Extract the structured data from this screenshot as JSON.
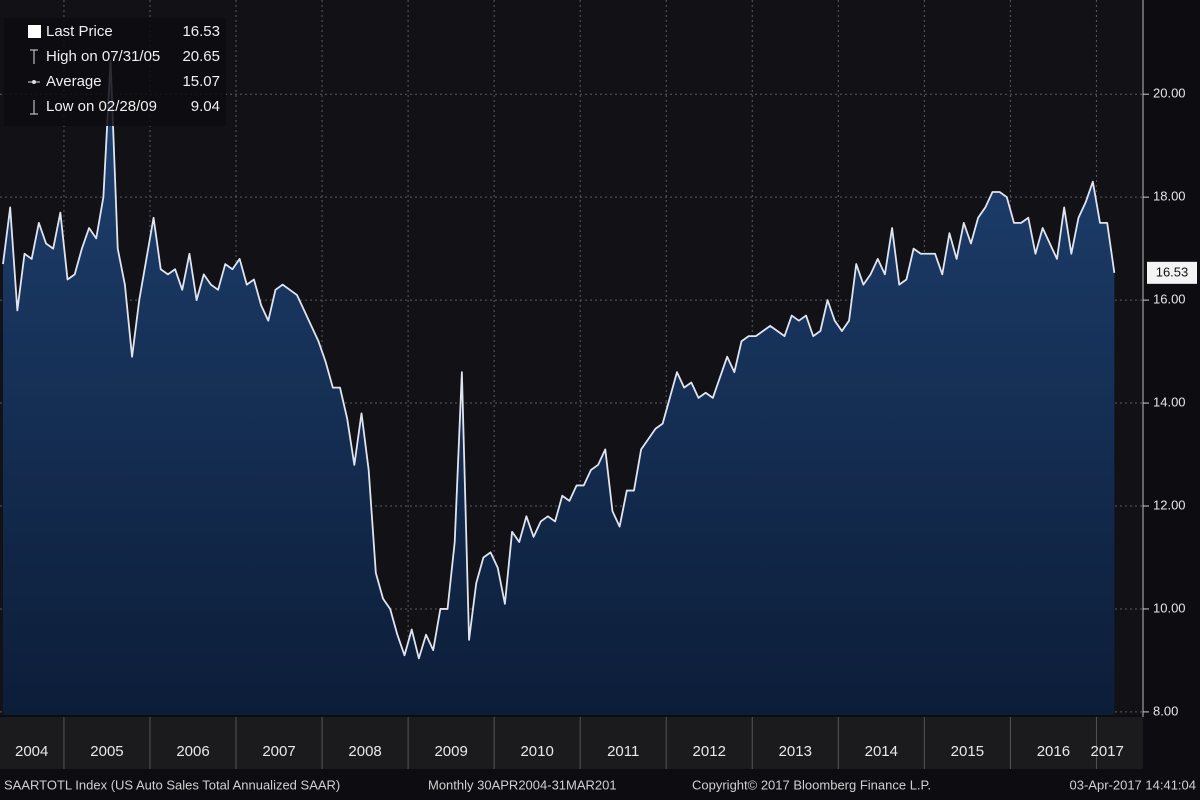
{
  "chart_data": {
    "type": "area",
    "color": "#dfe4ee",
    "fill": "#173562",
    "categories": [
      "2004",
      null,
      null,
      null,
      null,
      null,
      null,
      null,
      null,
      "2005",
      null,
      null,
      null,
      null,
      null,
      null,
      null,
      null,
      null,
      null,
      null,
      "2006",
      null,
      null,
      null,
      null,
      null,
      null,
      null,
      null,
      null,
      null,
      null,
      "2007",
      null,
      null,
      null,
      null,
      null,
      null,
      null,
      null,
      null,
      null,
      null,
      "2008",
      null,
      null,
      null,
      null,
      null,
      null,
      null,
      null,
      null,
      null,
      null,
      "2009",
      null,
      null,
      null,
      null,
      null,
      null,
      null,
      null,
      null,
      null,
      null,
      "2010",
      null,
      null,
      null,
      null,
      null,
      null,
      null,
      null,
      null,
      null,
      null,
      "2011",
      null,
      null,
      null,
      null,
      null,
      null,
      null,
      null,
      null,
      null,
      null,
      "2012",
      null,
      null,
      null,
      null,
      null,
      null,
      null,
      null,
      null,
      null,
      null,
      "2013",
      null,
      null,
      null,
      null,
      null,
      null,
      null,
      null,
      null,
      null,
      null,
      "2014",
      null,
      null,
      null,
      null,
      null,
      null,
      null,
      null,
      null,
      null,
      null,
      "2015",
      null,
      null,
      null,
      null,
      null,
      null,
      null,
      null,
      null,
      null,
      null,
      "2016",
      null,
      null,
      null,
      null,
      null,
      null,
      null,
      null,
      null,
      null,
      null,
      "2017",
      null,
      null
    ],
    "values": [
      16.7,
      17.8,
      15.8,
      16.9,
      16.8,
      17.5,
      17.1,
      17.0,
      17.7,
      16.4,
      16.5,
      17.0,
      17.4,
      17.2,
      18.0,
      20.65,
      17.0,
      16.3,
      14.9,
      16.0,
      16.8,
      17.6,
      16.6,
      16.5,
      16.6,
      16.2,
      16.9,
      16.0,
      16.5,
      16.3,
      16.2,
      16.7,
      16.6,
      16.8,
      16.3,
      16.4,
      15.9,
      15.6,
      16.2,
      16.3,
      16.2,
      16.1,
      15.8,
      15.5,
      15.2,
      14.8,
      14.3,
      14.3,
      13.7,
      12.8,
      13.8,
      12.7,
      10.7,
      10.2,
      10.0,
      9.5,
      9.1,
      9.6,
      9.04,
      9.5,
      9.2,
      10.0,
      10.0,
      11.3,
      14.6,
      9.4,
      10.5,
      11.0,
      11.1,
      10.8,
      10.1,
      11.5,
      11.3,
      11.8,
      11.4,
      11.7,
      11.8,
      11.7,
      12.2,
      12.1,
      12.4,
      12.4,
      12.7,
      12.8,
      13.1,
      11.9,
      11.6,
      12.3,
      12.3,
      13.1,
      13.3,
      13.5,
      13.6,
      14.1,
      14.6,
      14.3,
      14.4,
      14.1,
      14.2,
      14.1,
      14.5,
      14.9,
      14.6,
      15.2,
      15.3,
      15.3,
      15.4,
      15.5,
      15.4,
      15.3,
      15.7,
      15.6,
      15.7,
      15.3,
      15.4,
      16.0,
      15.6,
      15.4,
      15.6,
      16.7,
      16.3,
      16.5,
      16.8,
      16.5,
      17.4,
      16.3,
      16.4,
      17.0,
      16.9,
      16.9,
      16.9,
      16.5,
      17.3,
      16.8,
      17.5,
      17.1,
      17.6,
      17.8,
      18.1,
      18.1,
      18.0,
      17.5,
      17.5,
      17.6,
      16.9,
      17.4,
      17.1,
      16.8,
      17.8,
      16.9,
      17.6,
      17.9,
      18.3,
      17.5,
      17.5,
      16.53
    ],
    "ylim": [
      7.94,
      21.83
    ],
    "yticks": [
      {
        "value": 8,
        "label": "8.00"
      },
      {
        "value": 10,
        "label": "10.00"
      },
      {
        "value": 12,
        "label": "12.00"
      },
      {
        "value": 14,
        "label": "14.00"
      },
      {
        "value": 16,
        "label": "16.00"
      },
      {
        "value": 18,
        "label": "18.00"
      },
      {
        "value": 20,
        "label": "20.00"
      }
    ],
    "grid": true,
    "legend": [
      {
        "label": "Last Price",
        "value": 16.53
      },
      {
        "label": "High on 07/31/05",
        "value": 20.65
      },
      {
        "label": "Average",
        "value": 15.07
      },
      {
        "label": "Low on 02/28/09",
        "value": 9.04
      }
    ],
    "footer": {
      "index": "SAARTOTL Index (US Auto Sales Total Annualized SAAR)",
      "range": "Monthly 30APR2004-31MAR201",
      "copyright": "Copyright© 2017 Bloomberg Finance L.P.",
      "timestamp": "03-Apr-2017 14:41:04"
    }
  }
}
